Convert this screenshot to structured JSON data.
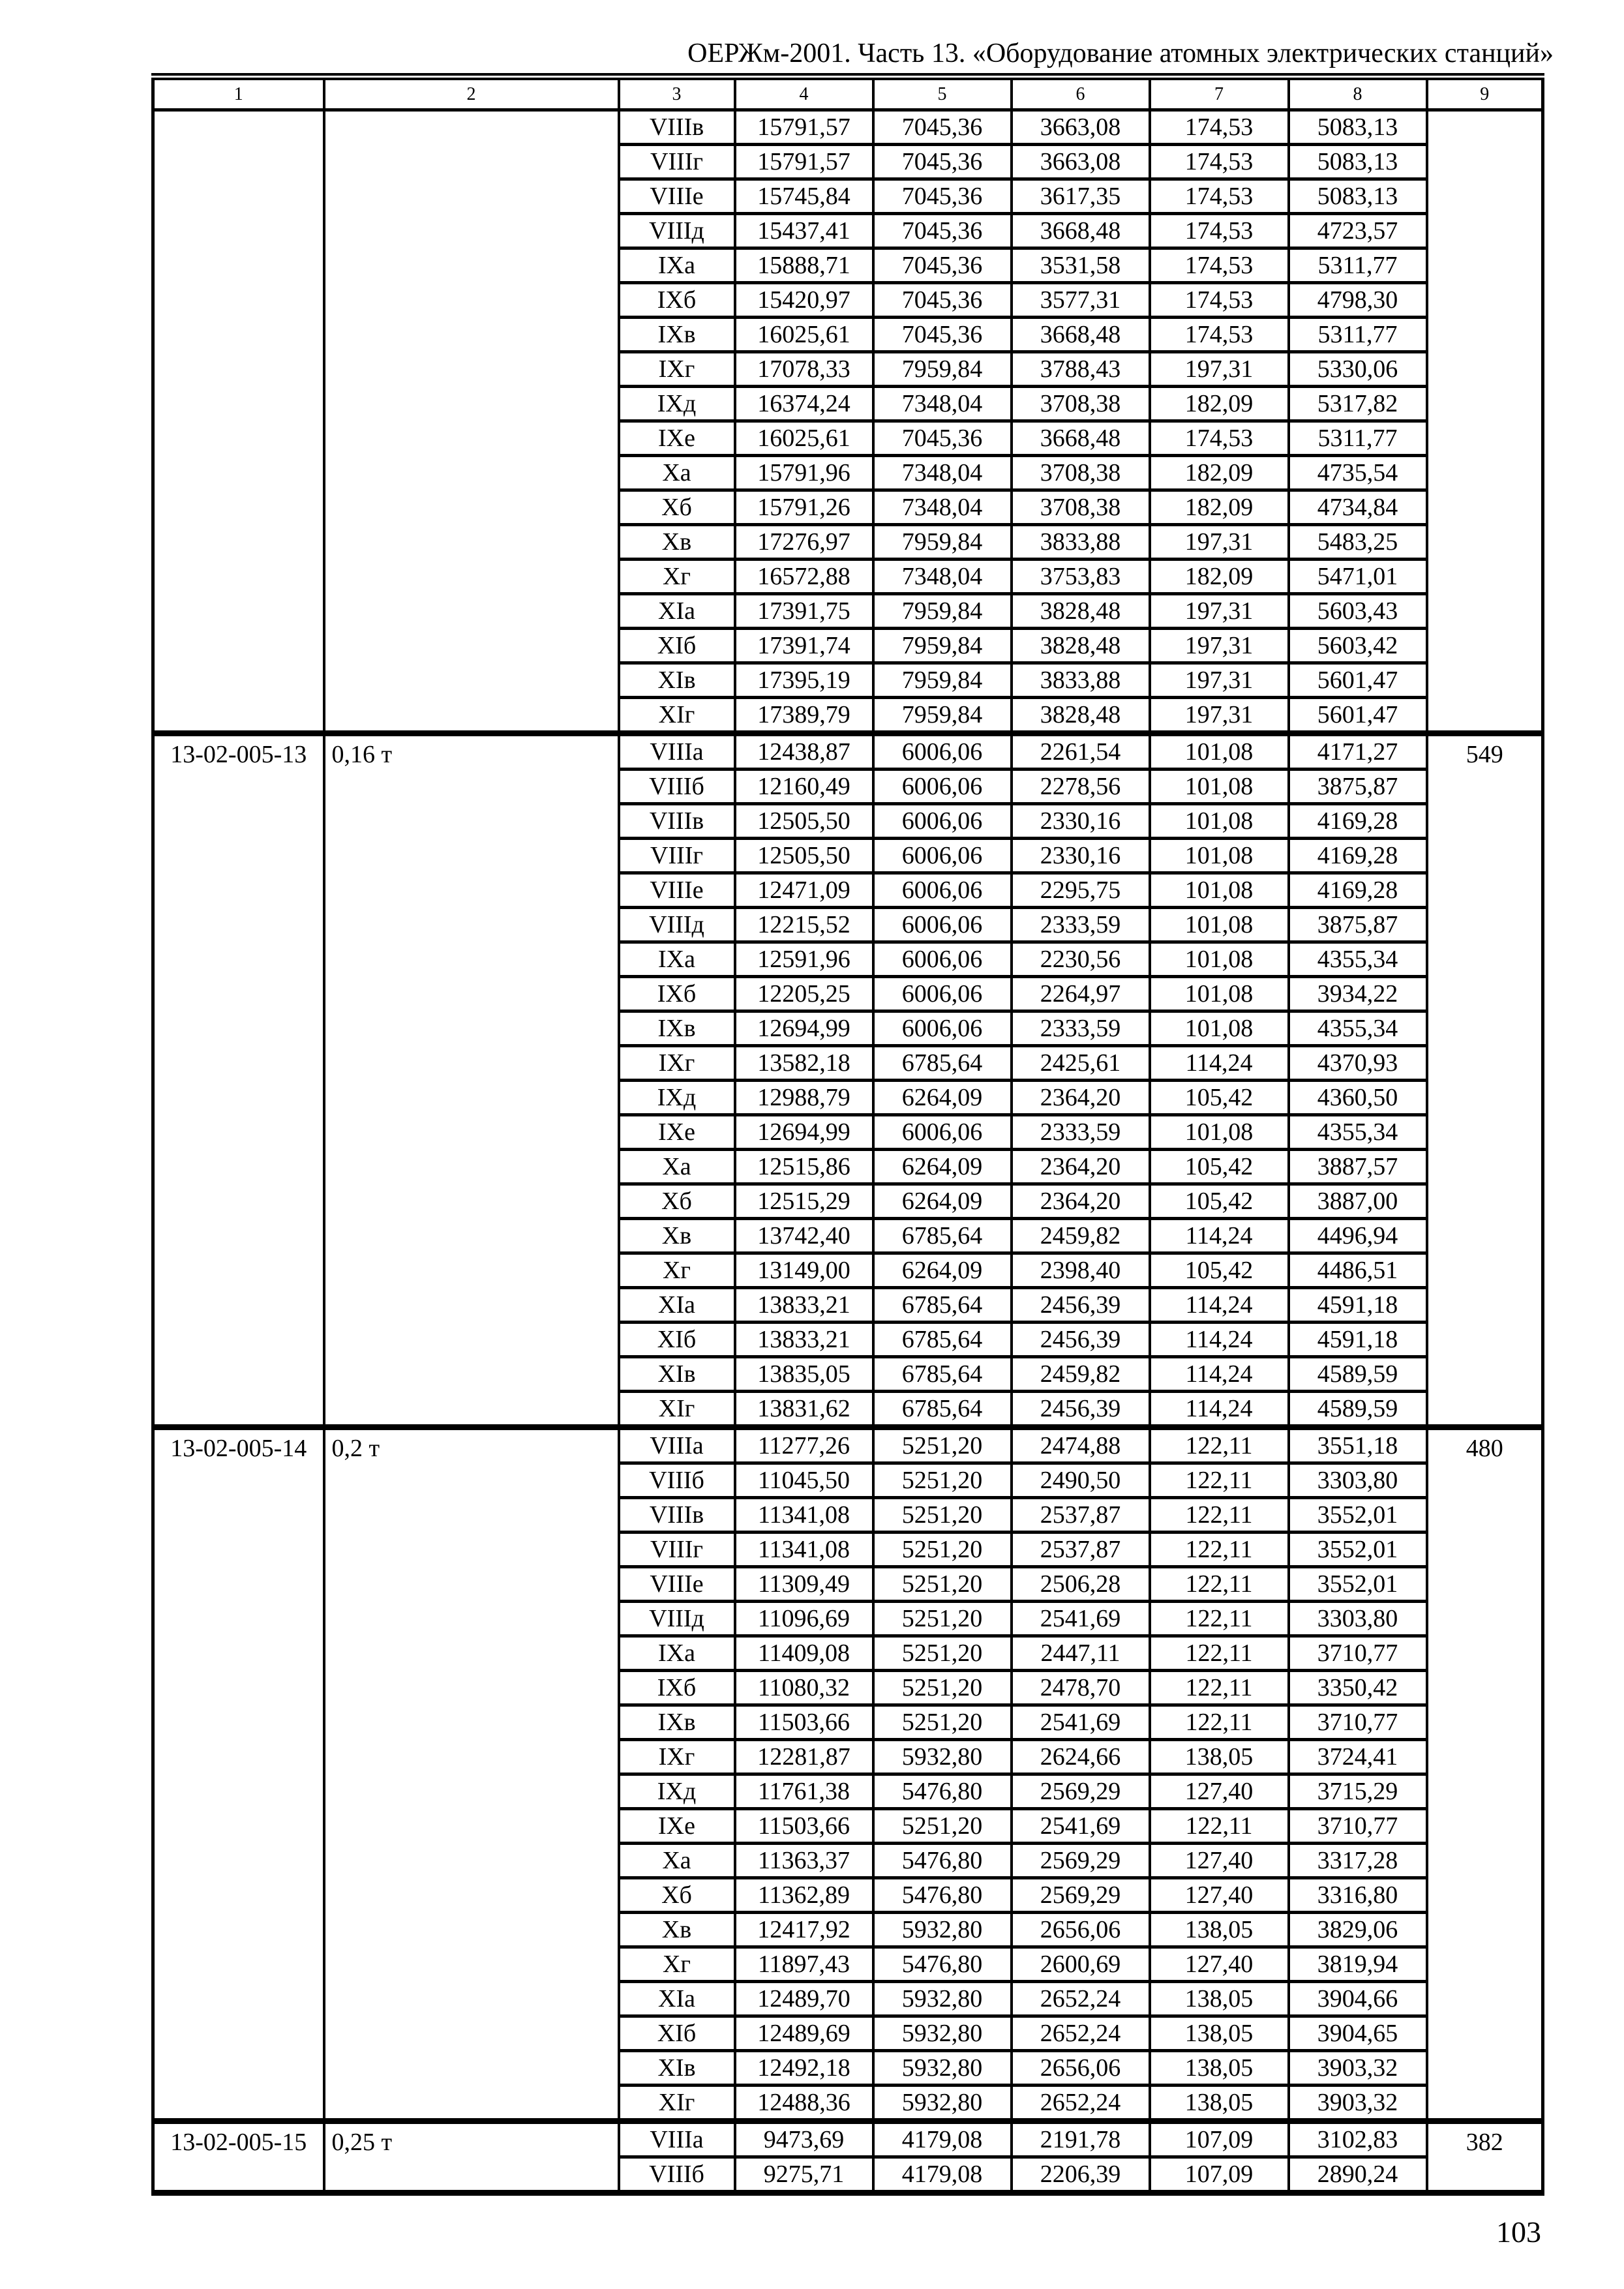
{
  "colors": {
    "text": "#000000",
    "background": "#ffffff",
    "border": "#000000"
  },
  "header": {
    "title": "ОЕРЖм-2001. Часть 13. «Оборудование атомных электрических станций»"
  },
  "footer": {
    "page_number": "103"
  },
  "table": {
    "column_headers": [
      "1",
      "2",
      "3",
      "4",
      "5",
      "6",
      "7",
      "8",
      "9"
    ],
    "sections": [
      {
        "code": "",
        "unit": "",
        "col9": "",
        "rows": [
          [
            "VIIIв",
            "15791,57",
            "7045,36",
            "3663,08",
            "174,53",
            "5083,13"
          ],
          [
            "VIIIг",
            "15791,57",
            "7045,36",
            "3663,08",
            "174,53",
            "5083,13"
          ],
          [
            "VIIIе",
            "15745,84",
            "7045,36",
            "3617,35",
            "174,53",
            "5083,13"
          ],
          [
            "VIIIд",
            "15437,41",
            "7045,36",
            "3668,48",
            "174,53",
            "4723,57"
          ],
          [
            "IXа",
            "15888,71",
            "7045,36",
            "3531,58",
            "174,53",
            "5311,77"
          ],
          [
            "IXб",
            "15420,97",
            "7045,36",
            "3577,31",
            "174,53",
            "4798,30"
          ],
          [
            "IXв",
            "16025,61",
            "7045,36",
            "3668,48",
            "174,53",
            "5311,77"
          ],
          [
            "IXг",
            "17078,33",
            "7959,84",
            "3788,43",
            "197,31",
            "5330,06"
          ],
          [
            "IXд",
            "16374,24",
            "7348,04",
            "3708,38",
            "182,09",
            "5317,82"
          ],
          [
            "IXе",
            "16025,61",
            "7045,36",
            "3668,48",
            "174,53",
            "5311,77"
          ],
          [
            "Xа",
            "15791,96",
            "7348,04",
            "3708,38",
            "182,09",
            "4735,54"
          ],
          [
            "Xб",
            "15791,26",
            "7348,04",
            "3708,38",
            "182,09",
            "4734,84"
          ],
          [
            "Xв",
            "17276,97",
            "7959,84",
            "3833,88",
            "197,31",
            "5483,25"
          ],
          [
            "Xг",
            "16572,88",
            "7348,04",
            "3753,83",
            "182,09",
            "5471,01"
          ],
          [
            "XIа",
            "17391,75",
            "7959,84",
            "3828,48",
            "197,31",
            "5603,43"
          ],
          [
            "XIб",
            "17391,74",
            "7959,84",
            "3828,48",
            "197,31",
            "5603,42"
          ],
          [
            "XIв",
            "17395,19",
            "7959,84",
            "3833,88",
            "197,31",
            "5601,47"
          ],
          [
            "XIг",
            "17389,79",
            "7959,84",
            "3828,48",
            "197,31",
            "5601,47"
          ]
        ]
      },
      {
        "code": "13-02-005-13",
        "unit": "0,16 т",
        "col9": "549",
        "rows": [
          [
            "VIIIа",
            "12438,87",
            "6006,06",
            "2261,54",
            "101,08",
            "4171,27"
          ],
          [
            "VIIIб",
            "12160,49",
            "6006,06",
            "2278,56",
            "101,08",
            "3875,87"
          ],
          [
            "VIIIв",
            "12505,50",
            "6006,06",
            "2330,16",
            "101,08",
            "4169,28"
          ],
          [
            "VIIIг",
            "12505,50",
            "6006,06",
            "2330,16",
            "101,08",
            "4169,28"
          ],
          [
            "VIIIе",
            "12471,09",
            "6006,06",
            "2295,75",
            "101,08",
            "4169,28"
          ],
          [
            "VIIIд",
            "12215,52",
            "6006,06",
            "2333,59",
            "101,08",
            "3875,87"
          ],
          [
            "IXа",
            "12591,96",
            "6006,06",
            "2230,56",
            "101,08",
            "4355,34"
          ],
          [
            "IXб",
            "12205,25",
            "6006,06",
            "2264,97",
            "101,08",
            "3934,22"
          ],
          [
            "IXв",
            "12694,99",
            "6006,06",
            "2333,59",
            "101,08",
            "4355,34"
          ],
          [
            "IXг",
            "13582,18",
            "6785,64",
            "2425,61",
            "114,24",
            "4370,93"
          ],
          [
            "IXд",
            "12988,79",
            "6264,09",
            "2364,20",
            "105,42",
            "4360,50"
          ],
          [
            "IXе",
            "12694,99",
            "6006,06",
            "2333,59",
            "101,08",
            "4355,34"
          ],
          [
            "Xа",
            "12515,86",
            "6264,09",
            "2364,20",
            "105,42",
            "3887,57"
          ],
          [
            "Xб",
            "12515,29",
            "6264,09",
            "2364,20",
            "105,42",
            "3887,00"
          ],
          [
            "Xв",
            "13742,40",
            "6785,64",
            "2459,82",
            "114,24",
            "4496,94"
          ],
          [
            "Xг",
            "13149,00",
            "6264,09",
            "2398,40",
            "105,42",
            "4486,51"
          ],
          [
            "XIа",
            "13833,21",
            "6785,64",
            "2456,39",
            "114,24",
            "4591,18"
          ],
          [
            "XIб",
            "13833,21",
            "6785,64",
            "2456,39",
            "114,24",
            "4591,18"
          ],
          [
            "XIв",
            "13835,05",
            "6785,64",
            "2459,82",
            "114,24",
            "4589,59"
          ],
          [
            "XIг",
            "13831,62",
            "6785,64",
            "2456,39",
            "114,24",
            "4589,59"
          ]
        ]
      },
      {
        "code": "13-02-005-14",
        "unit": "0,2 т",
        "col9": "480",
        "rows": [
          [
            "VIIIа",
            "11277,26",
            "5251,20",
            "2474,88",
            "122,11",
            "3551,18"
          ],
          [
            "VIIIб",
            "11045,50",
            "5251,20",
            "2490,50",
            "122,11",
            "3303,80"
          ],
          [
            "VIIIв",
            "11341,08",
            "5251,20",
            "2537,87",
            "122,11",
            "3552,01"
          ],
          [
            "VIIIг",
            "11341,08",
            "5251,20",
            "2537,87",
            "122,11",
            "3552,01"
          ],
          [
            "VIIIе",
            "11309,49",
            "5251,20",
            "2506,28",
            "122,11",
            "3552,01"
          ],
          [
            "VIIIд",
            "11096,69",
            "5251,20",
            "2541,69",
            "122,11",
            "3303,80"
          ],
          [
            "IXа",
            "11409,08",
            "5251,20",
            "2447,11",
            "122,11",
            "3710,77"
          ],
          [
            "IXб",
            "11080,32",
            "5251,20",
            "2478,70",
            "122,11",
            "3350,42"
          ],
          [
            "IXв",
            "11503,66",
            "5251,20",
            "2541,69",
            "122,11",
            "3710,77"
          ],
          [
            "IXг",
            "12281,87",
            "5932,80",
            "2624,66",
            "138,05",
            "3724,41"
          ],
          [
            "IXд",
            "11761,38",
            "5476,80",
            "2569,29",
            "127,40",
            "3715,29"
          ],
          [
            "IXе",
            "11503,66",
            "5251,20",
            "2541,69",
            "122,11",
            "3710,77"
          ],
          [
            "Xа",
            "11363,37",
            "5476,80",
            "2569,29",
            "127,40",
            "3317,28"
          ],
          [
            "Xб",
            "11362,89",
            "5476,80",
            "2569,29",
            "127,40",
            "3316,80"
          ],
          [
            "Xв",
            "12417,92",
            "5932,80",
            "2656,06",
            "138,05",
            "3829,06"
          ],
          [
            "Xг",
            "11897,43",
            "5476,80",
            "2600,69",
            "127,40",
            "3819,94"
          ],
          [
            "XIа",
            "12489,70",
            "5932,80",
            "2652,24",
            "138,05",
            "3904,66"
          ],
          [
            "XIб",
            "12489,69",
            "5932,80",
            "2652,24",
            "138,05",
            "3904,65"
          ],
          [
            "XIв",
            "12492,18",
            "5932,80",
            "2656,06",
            "138,05",
            "3903,32"
          ],
          [
            "XIг",
            "12488,36",
            "5932,80",
            "2652,24",
            "138,05",
            "3903,32"
          ]
        ]
      },
      {
        "code": "13-02-005-15",
        "unit": "0,25 т",
        "col9": "382",
        "rows": [
          [
            "VIIIа",
            "9473,69",
            "4179,08",
            "2191,78",
            "107,09",
            "3102,83"
          ],
          [
            "VIIIб",
            "9275,71",
            "4179,08",
            "2206,39",
            "107,09",
            "2890,24"
          ]
        ]
      }
    ]
  }
}
